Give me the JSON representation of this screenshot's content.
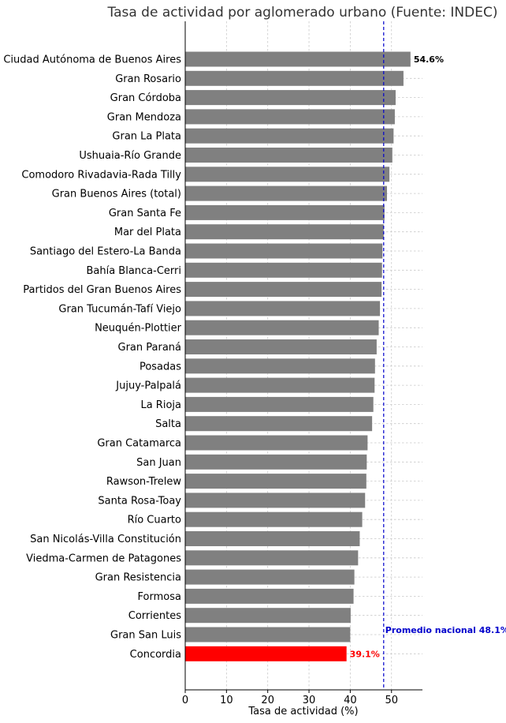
{
  "chart_data": {
    "type": "bar",
    "orientation": "horizontal",
    "title": "Tasa de actividad por aglomerado urbano (Fuente: INDEC)",
    "xlabel": "Tasa de actividad (%)",
    "ylabel": "",
    "xlim": [
      0,
      57.5
    ],
    "xticks": [
      0,
      10,
      20,
      30,
      40,
      50
    ],
    "grid": true,
    "bar_color": "#808080",
    "highlight_color": "#ff0000",
    "reference_line_color": "#0000cc",
    "categories": [
      "Ciudad Autónoma de Buenos Aires",
      "Gran Rosario",
      "Gran Córdoba",
      "Gran Mendoza",
      "Gran La Plata",
      "Ushuaia-Río Grande",
      "Comodoro Rivadavia-Rada Tilly",
      "Gran Buenos Aires (total)",
      "Gran Santa Fe",
      "Mar del Plata",
      "Santiago del Estero-La Banda",
      "Bahía Blanca-Cerri",
      "Partidos del Gran Buenos Aires",
      "Gran Tucumán-Tafí Viejo",
      "Neuquén-Plottier",
      "Gran Paraná",
      "Posadas",
      "Jujuy-Palpalá",
      "La Rioja",
      "Salta",
      "Gran Catamarca",
      "San Juan",
      "Rawson-Trelew",
      "Santa Rosa-Toay",
      "Río Cuarto",
      "San Nicolás-Villa Constitución",
      "Viedma-Carmen de Patagones",
      "Gran Resistencia",
      "Formosa",
      "Corrientes",
      "Gran San Luis",
      "Concordia"
    ],
    "values": [
      54.6,
      52.9,
      51.0,
      50.8,
      50.5,
      50.2,
      49.5,
      48.9,
      48.3,
      48.1,
      47.8,
      47.7,
      47.6,
      47.2,
      46.9,
      46.4,
      46.0,
      45.9,
      45.6,
      45.3,
      44.2,
      44.0,
      43.9,
      43.6,
      42.9,
      42.3,
      41.9,
      41.0,
      40.8,
      40.1,
      40.0,
      39.1
    ],
    "highlight_category": "Concordia",
    "reference_line": {
      "value": 48.1,
      "label": "Promedio nacional 48.1%"
    },
    "data_labels": [
      {
        "category": "Ciudad Autónoma de Buenos Aires",
        "text": "54.6%"
      },
      {
        "category": "Concordia",
        "text": "39.1%"
      }
    ]
  }
}
